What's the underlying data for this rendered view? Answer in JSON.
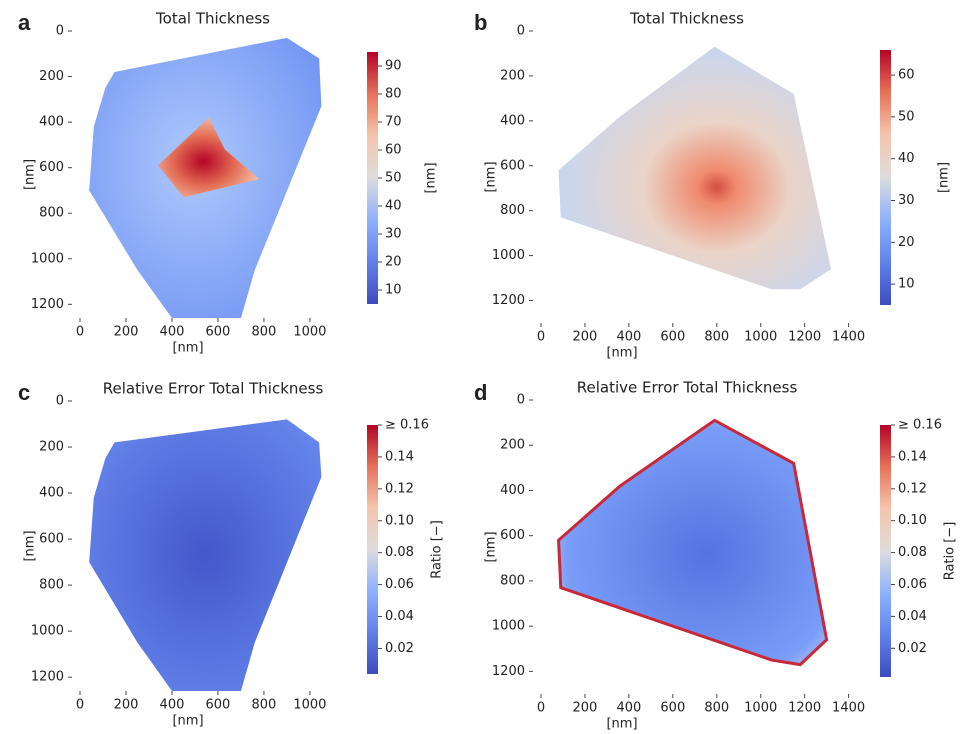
{
  "chart_data": [
    {
      "type": "heatmap",
      "panel": "a",
      "title": "Total Thickness",
      "xlabel": "[nm]",
      "ylabel": "[nm]",
      "colorbar_label": "[nm]",
      "xlim": [
        0,
        1070
      ],
      "xticks": [
        0,
        200,
        400,
        600,
        800,
        1000
      ],
      "ylim": [
        1260,
        0
      ],
      "yticks": [
        0,
        200,
        400,
        600,
        800,
        1000,
        1200
      ],
      "clim": [
        5,
        95
      ],
      "cticks": [
        10,
        20,
        30,
        40,
        50,
        60,
        70,
        80,
        90
      ],
      "colormap": "coolwarm"
    },
    {
      "type": "heatmap",
      "panel": "b",
      "title": "Total Thickness",
      "xlabel": "[nm]",
      "ylabel": "[nm]",
      "colorbar_label": "[nm]",
      "xlim": [
        0,
        1420
      ],
      "xticks": [
        0,
        200,
        400,
        600,
        800,
        1000,
        1200,
        1400
      ],
      "ylim": [
        1300,
        0
      ],
      "yticks": [
        0,
        200,
        400,
        600,
        800,
        1000,
        1200
      ],
      "clim": [
        5,
        66
      ],
      "cticks": [
        10,
        20,
        30,
        40,
        50,
        60
      ],
      "colormap": "coolwarm"
    },
    {
      "type": "heatmap",
      "panel": "c",
      "title": "Relative Error Total Thickness",
      "xlabel": "[nm]",
      "ylabel": "[nm]",
      "colorbar_label": "Ratio [−]",
      "xlim": [
        0,
        1070
      ],
      "xticks": [
        0,
        200,
        400,
        600,
        800,
        1000
      ],
      "ylim": [
        1260,
        0
      ],
      "yticks": [
        0,
        200,
        400,
        600,
        800,
        1000,
        1200
      ],
      "clim": [
        0.004,
        0.16
      ],
      "cticks": [
        0.02,
        0.04,
        0.06,
        0.08,
        {
          "value": 0.1,
          "label": "0.10"
        },
        0.12,
        0.14,
        {
          "value": 0.16,
          "label": "≥ 0.16"
        }
      ],
      "colormap": "coolwarm"
    },
    {
      "type": "heatmap",
      "panel": "d",
      "title": "Relative Error Total Thickness",
      "xlabel": "[nm]",
      "ylabel": "[nm]",
      "colorbar_label": "Ratio [−]",
      "xlim": [
        0,
        1420
      ],
      "xticks": [
        0,
        200,
        400,
        600,
        800,
        1000,
        1200,
        1400
      ],
      "ylim": [
        1300,
        0
      ],
      "yticks": [
        0,
        200,
        400,
        600,
        800,
        1000,
        1200
      ],
      "clim": [
        0.002,
        0.16
      ],
      "cticks": [
        0.02,
        0.04,
        0.06,
        0.08,
        {
          "value": 0.1,
          "label": "0.10"
        },
        0.12,
        0.14,
        {
          "value": 0.16,
          "label": "≥ 0.16"
        }
      ],
      "colormap": "coolwarm"
    }
  ]
}
